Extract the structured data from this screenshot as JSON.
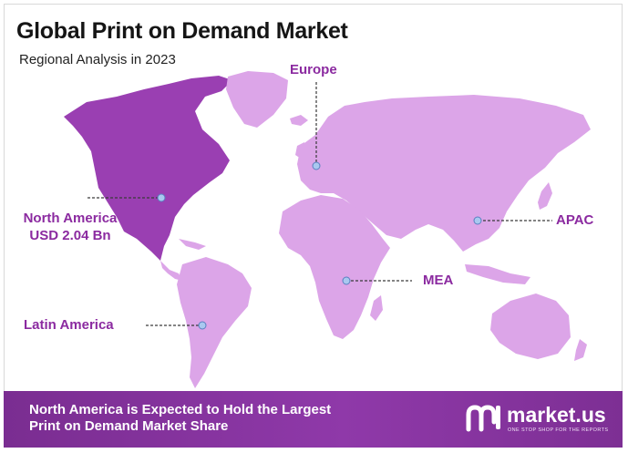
{
  "header": {
    "title": "Global Print on Demand Market",
    "subtitle": "Regional Analysis in 2023"
  },
  "regions": {
    "europe": "Europe",
    "north_america_name": "North America",
    "north_america_value": "USD 2.04 Bn",
    "apac": "APAC",
    "mea": "MEA",
    "latin_america": "Latin America"
  },
  "highlight_region": "North America",
  "colors": {
    "highlight": "#9a3fb2",
    "land": "#dca5e8",
    "label": "#8b2aa0",
    "footer": "#84329b"
  },
  "footer": {
    "line1": "North America is Expected to Hold the Largest",
    "line2": "Print on Demand Market Share"
  },
  "brand": {
    "name": "market.us",
    "tagline": "ONE STOP SHOP FOR THE REPORTS",
    "icon": "market-us-logo-icon"
  }
}
